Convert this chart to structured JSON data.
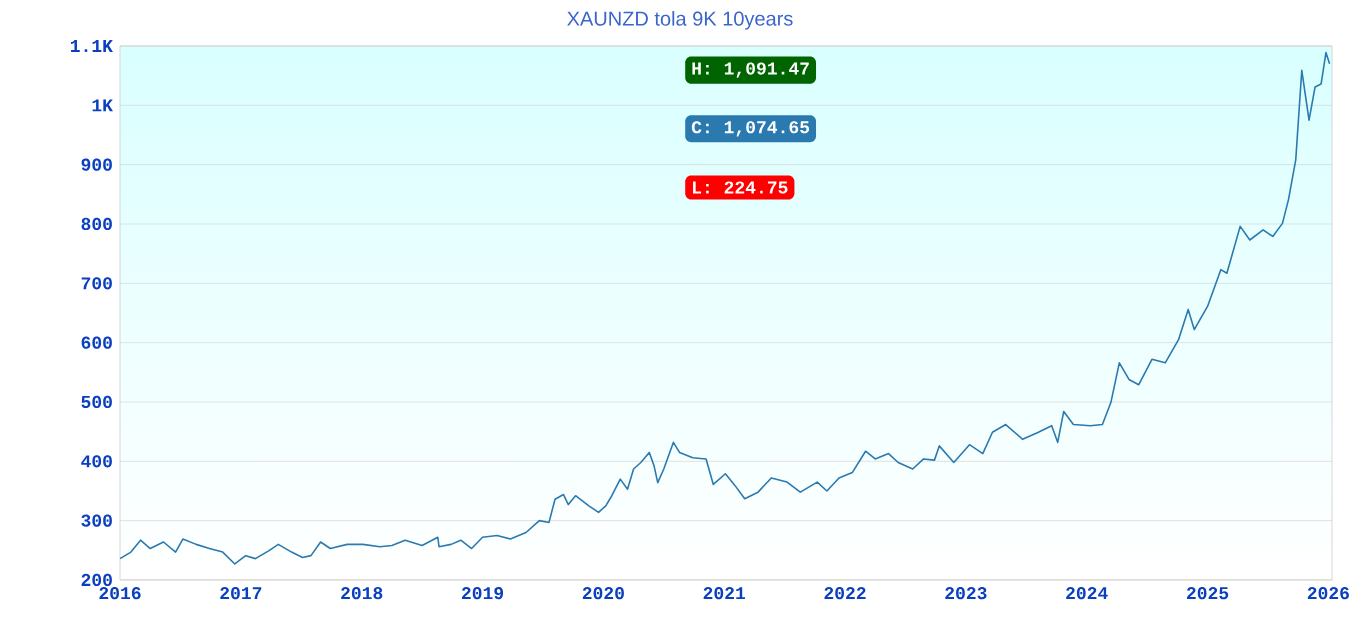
{
  "chart_data": {
    "type": "line",
    "title": "XAUNZD tola 9K 10years",
    "x": [
      2016.0,
      2016.09,
      2016.17,
      2016.25,
      2016.36,
      2016.46,
      2016.52,
      2016.63,
      2016.74,
      2016.85,
      2016.95,
      2017.04,
      2017.12,
      2017.23,
      2017.31,
      2017.42,
      2017.51,
      2017.58,
      2017.66,
      2017.74,
      2017.88,
      2018.01,
      2018.15,
      2018.25,
      2018.36,
      2018.5,
      2018.63,
      2018.64,
      2018.74,
      2018.82,
      2018.91,
      2019.0,
      2019.12,
      2019.23,
      2019.36,
      2019.47,
      2019.55,
      2019.6,
      2019.67,
      2019.71,
      2019.77,
      2019.88,
      2019.96,
      2020.02,
      2020.07,
      2020.14,
      2020.2,
      2020.25,
      2020.31,
      2020.38,
      2020.42,
      2020.45,
      2020.5,
      2020.58,
      2020.63,
      2020.74,
      2020.85,
      2020.91,
      2021.01,
      2021.09,
      2021.17,
      2021.28,
      2021.39,
      2021.52,
      2021.63,
      2021.77,
      2021.85,
      2021.95,
      2022.06,
      2022.17,
      2022.25,
      2022.36,
      2022.44,
      2022.56,
      2022.65,
      2022.74,
      2022.78,
      2022.9,
      2023.03,
      2023.14,
      2023.22,
      2023.33,
      2023.47,
      2023.6,
      2023.71,
      2023.76,
      2023.81,
      2023.89,
      2024.03,
      2024.13,
      2024.2,
      2024.27,
      2024.35,
      2024.43,
      2024.54,
      2024.65,
      2024.76,
      2024.84,
      2024.89,
      2025.0,
      2025.11,
      2025.16,
      2025.27,
      2025.35,
      2025.46,
      2025.54,
      2025.62,
      2025.67,
      2025.73,
      2025.78,
      2025.84,
      2025.89,
      2025.94,
      2025.98,
      2026.01
    ],
    "series": [
      {
        "color": "#2a7ab0",
        "values": [
          236,
          247,
          267,
          253,
          264,
          247,
          269,
          260,
          253,
          247,
          227,
          241,
          236,
          249,
          260,
          247,
          238,
          241,
          264,
          253,
          260,
          260,
          256,
          258,
          267,
          258,
          272,
          256,
          260,
          267,
          253,
          272,
          275,
          269,
          280,
          300,
          297,
          336,
          344,
          327,
          342,
          325,
          314,
          325,
          342,
          370,
          353,
          387,
          398,
          415,
          392,
          364,
          387,
          432,
          415,
          406,
          404,
          361,
          379,
          359,
          337,
          348,
          372,
          365,
          348,
          365,
          350,
          372,
          381,
          417,
          404,
          413,
          398,
          387,
          404,
          402,
          426,
          398,
          428,
          413,
          449,
          462,
          437,
          449,
          460,
          432,
          484,
          462,
          460,
          462,
          499,
          566,
          538,
          529,
          572,
          566,
          605,
          656,
          622,
          661,
          723,
          717,
          796,
          773,
          790,
          779,
          801,
          841,
          908,
          1059,
          975,
          1031,
          1036,
          1089,
          1070
        ]
      }
    ],
    "xlim": [
      2016,
      2026.03
    ],
    "xticks": [
      2016,
      2017,
      2018,
      2019,
      2020,
      2021,
      2022,
      2023,
      2024,
      2025,
      2026
    ],
    "ylim": [
      200,
      1100
    ],
    "yticks": [
      200,
      300,
      400,
      500,
      600,
      700,
      800,
      900,
      {
        "value": 1000,
        "label": "1K"
      },
      {
        "value": 1100,
        "label": "1.1K"
      }
    ],
    "grid": "y",
    "annotations": [
      "H: 1,091.47",
      "C: 1,074.65",
      "L: 224.75"
    ]
  }
}
